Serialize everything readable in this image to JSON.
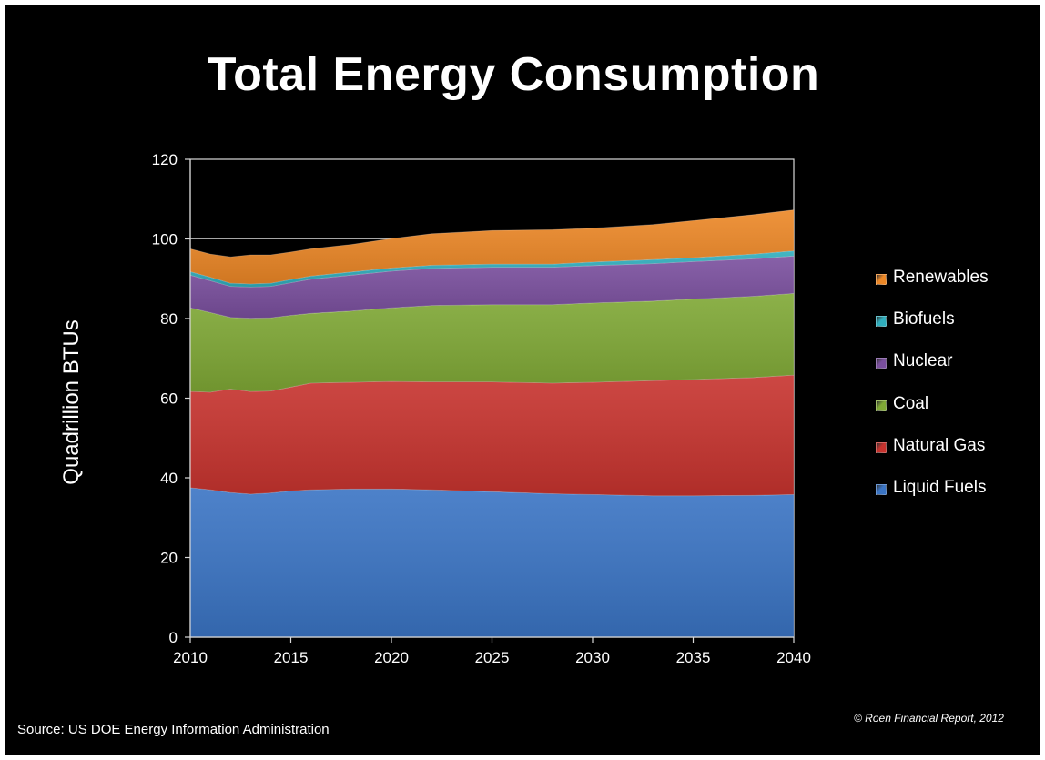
{
  "slide": {
    "source": "Source: US DOE Energy Information Administration",
    "copyright": "© Roen Financial Report,  2012"
  },
  "chart_data": {
    "type": "area",
    "stacked": true,
    "title": "Total Energy Consumption",
    "xlabel": "",
    "ylabel": "Quadrillion BTUs",
    "xlim": [
      2010,
      2040
    ],
    "ylim": [
      0,
      120
    ],
    "xticks": [
      2010,
      2015,
      2020,
      2025,
      2030,
      2035,
      2040
    ],
    "yticks": [
      0,
      20,
      40,
      60,
      80,
      100,
      120
    ],
    "grid": "horizontal line at 100",
    "legend_position": "right",
    "x": [
      2010,
      2011,
      2012,
      2013,
      2014,
      2015,
      2016,
      2018,
      2020,
      2022,
      2025,
      2028,
      2030,
      2033,
      2035,
      2038,
      2040
    ],
    "series": [
      {
        "name": "Liquid Fuels",
        "color": "#3a74c4",
        "values": [
          37.5,
          37.0,
          36.3,
          35.9,
          36.2,
          36.7,
          37.0,
          37.2,
          37.2,
          37.0,
          36.5,
          36.0,
          35.8,
          35.5,
          35.5,
          35.6,
          35.8
        ]
      },
      {
        "name": "Natural Gas",
        "color": "#c7332e",
        "values": [
          24.2,
          24.5,
          26.0,
          25.8,
          25.6,
          26.1,
          26.8,
          26.8,
          27.0,
          27.1,
          27.6,
          27.8,
          28.2,
          28.9,
          29.2,
          29.6,
          30.0
        ]
      },
      {
        "name": "Coal",
        "color": "#7fa835",
        "values": [
          21.0,
          20.0,
          18.0,
          18.4,
          18.4,
          18.0,
          17.5,
          17.9,
          18.5,
          19.2,
          19.4,
          19.7,
          19.9,
          20.0,
          20.2,
          20.4,
          20.5
        ]
      },
      {
        "name": "Nuclear",
        "color": "#7a4f9e",
        "values": [
          8.2,
          8.0,
          7.8,
          7.8,
          7.9,
          8.2,
          8.6,
          9.0,
          9.2,
          9.3,
          9.4,
          9.4,
          9.4,
          9.4,
          9.4,
          9.4,
          9.4
        ]
      },
      {
        "name": "Biofuels",
        "color": "#30aebd",
        "values": [
          0.9,
          0.9,
          0.8,
          0.8,
          0.8,
          0.8,
          0.8,
          0.8,
          0.8,
          0.8,
          0.8,
          0.8,
          0.9,
          1.0,
          1.0,
          1.2,
          1.3
        ]
      },
      {
        "name": "Renewables",
        "color": "#ec8726",
        "values": [
          5.7,
          5.8,
          6.6,
          7.3,
          7.1,
          6.9,
          6.8,
          6.9,
          7.4,
          7.9,
          8.4,
          8.6,
          8.5,
          8.8,
          9.3,
          9.9,
          10.3
        ]
      }
    ]
  }
}
